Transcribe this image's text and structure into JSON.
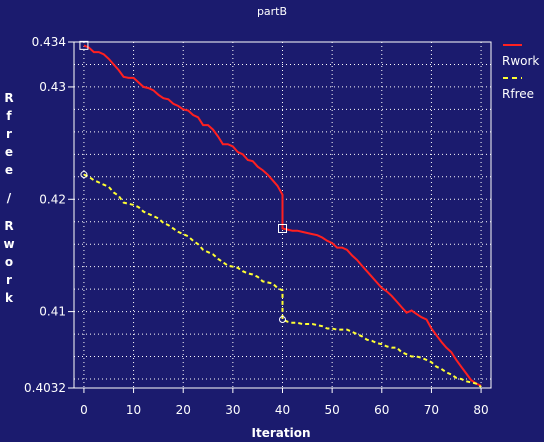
{
  "chart_data": {
    "type": "line",
    "title": "partB",
    "xlabel": "Iteration",
    "ylabel": "Rfree / Rwork",
    "xlim": [
      -2,
      82
    ],
    "ylim": [
      0.4032,
      0.434
    ],
    "xticks": [
      "0",
      "10",
      "20",
      "30",
      "40",
      "50",
      "60",
      "70",
      "80"
    ],
    "yticks": [
      "0.434",
      "0.43",
      "0.42",
      "0.41",
      "0.4032"
    ],
    "grid": true,
    "legend_position": "top-right",
    "background_color": "#1b1b6e",
    "series": [
      {
        "name": "Rwork",
        "color": "#ff2020",
        "style": "solid",
        "marker": "square",
        "x": [
          0,
          1,
          2,
          3,
          4,
          5,
          6,
          7,
          8,
          9,
          10,
          11,
          12,
          13,
          14,
          15,
          16,
          17,
          18,
          19,
          20,
          21,
          22,
          23,
          24,
          25,
          26,
          27,
          28,
          29,
          30,
          31,
          32,
          33,
          34,
          35,
          36,
          37,
          38,
          39,
          40,
          40,
          41,
          42,
          43,
          44,
          45,
          46,
          47,
          48,
          49,
          50,
          51,
          52,
          53,
          54,
          55,
          56,
          57,
          58,
          59,
          60,
          61,
          62,
          63,
          64,
          65,
          66,
          67,
          68,
          69,
          70,
          71,
          72,
          73,
          74,
          75,
          76,
          77,
          78,
          79,
          80
        ],
        "y": [
          0.4337,
          0.4335,
          0.4331,
          0.4331,
          0.4329,
          0.4325,
          0.432,
          0.4315,
          0.4309,
          0.4308,
          0.4308,
          0.4304,
          0.43,
          0.4299,
          0.4297,
          0.4293,
          0.429,
          0.4289,
          0.4285,
          0.4283,
          0.428,
          0.4279,
          0.4275,
          0.4273,
          0.4266,
          0.4266,
          0.4262,
          0.4256,
          0.4249,
          0.4249,
          0.4247,
          0.4242,
          0.424,
          0.4235,
          0.4234,
          0.4229,
          0.4226,
          0.4222,
          0.4217,
          0.4212,
          0.4204,
          0.4174,
          0.4173,
          0.4172,
          0.4172,
          0.4171,
          0.417,
          0.4169,
          0.4168,
          0.4166,
          0.4163,
          0.4161,
          0.4157,
          0.4157,
          0.4155,
          0.415,
          0.4146,
          0.4141,
          0.4136,
          0.4131,
          0.4126,
          0.4121,
          0.4118,
          0.4114,
          0.4109,
          0.4104,
          0.4099,
          0.4101,
          0.4098,
          0.4095,
          0.4093,
          0.4085,
          0.4079,
          0.4073,
          0.4068,
          0.4064,
          0.4057,
          0.4051,
          0.4045,
          0.4039,
          0.4036,
          0.4034
        ]
      },
      {
        "name": "Rfree",
        "color": "#ffff33",
        "style": "dashed",
        "marker": "circle",
        "x": [
          0,
          1,
          2,
          3,
          4,
          5,
          6,
          7,
          8,
          9,
          10,
          11,
          12,
          13,
          14,
          15,
          16,
          17,
          18,
          19,
          20,
          21,
          22,
          23,
          24,
          25,
          26,
          27,
          28,
          29,
          30,
          31,
          32,
          33,
          34,
          35,
          36,
          37,
          38,
          39,
          40,
          40,
          41,
          42,
          43,
          44,
          45,
          46,
          47,
          48,
          49,
          50,
          51,
          52,
          53,
          54,
          55,
          56,
          57,
          58,
          59,
          60,
          61,
          62,
          63,
          64,
          65,
          66,
          67,
          68,
          69,
          70,
          71,
          72,
          73,
          74,
          75,
          76,
          77,
          78,
          79,
          80
        ],
        "y": [
          0.4222,
          0.422,
          0.4217,
          0.4215,
          0.4213,
          0.4211,
          0.4206,
          0.4203,
          0.4197,
          0.4196,
          0.4195,
          0.4193,
          0.4189,
          0.4187,
          0.4185,
          0.4183,
          0.4179,
          0.4177,
          0.4174,
          0.4171,
          0.4169,
          0.4167,
          0.4163,
          0.416,
          0.4155,
          0.4153,
          0.4151,
          0.4147,
          0.4144,
          0.4141,
          0.414,
          0.4139,
          0.4136,
          0.4134,
          0.4133,
          0.4131,
          0.4127,
          0.4126,
          0.4125,
          0.4121,
          0.4119,
          0.4093,
          0.4091,
          0.409,
          0.409,
          0.4089,
          0.4089,
          0.4089,
          0.4088,
          0.4087,
          0.4085,
          0.4085,
          0.4084,
          0.4084,
          0.4084,
          0.4082,
          0.408,
          0.4078,
          0.4075,
          0.4074,
          0.4072,
          0.4071,
          0.4069,
          0.4068,
          0.4068,
          0.4064,
          0.4062,
          0.406,
          0.406,
          0.4059,
          0.4057,
          0.4055,
          0.4051,
          0.4049,
          0.4046,
          0.4044,
          0.4041,
          0.404,
          0.4038,
          0.4037,
          0.4036,
          0.4033
        ]
      }
    ],
    "markers": [
      {
        "series": "Rwork",
        "x": 0,
        "y": 0.4337
      },
      {
        "series": "Rwork",
        "x": 40,
        "y": 0.4174
      },
      {
        "series": "Rfree",
        "x": 0,
        "y": 0.4222
      },
      {
        "series": "Rfree",
        "x": 40,
        "y": 0.4093
      }
    ]
  }
}
